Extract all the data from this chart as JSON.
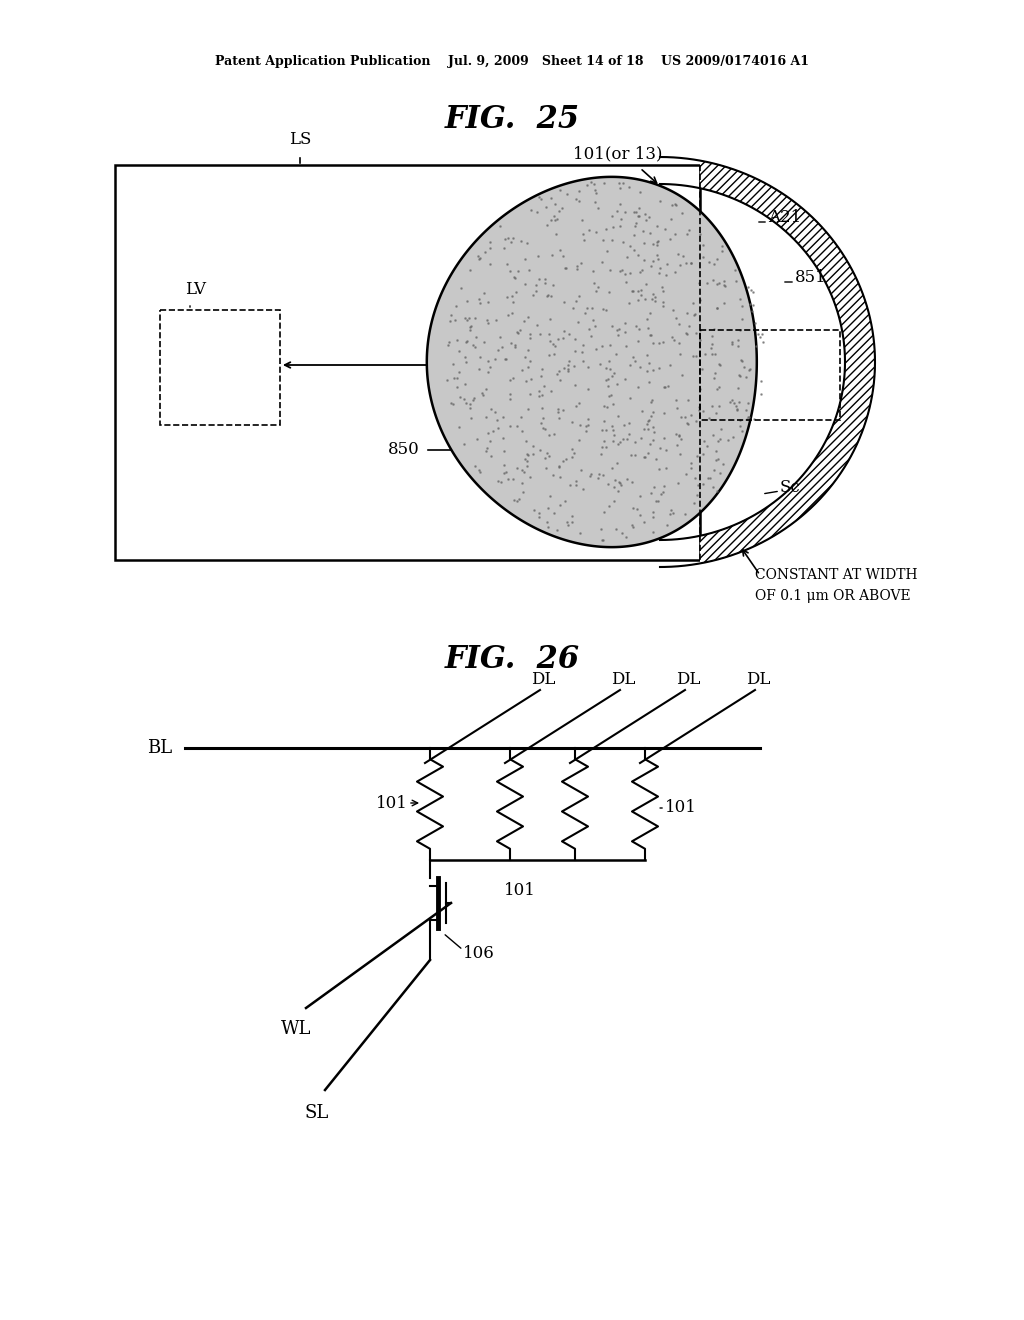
{
  "bg_color": "#ffffff",
  "header_text": "Patent Application Publication    Jul. 9, 2009   Sheet 14 of 18    US 2009/0174016 A1",
  "fig25_title": "FIG.  25",
  "fig26_title": "FIG.  26"
}
